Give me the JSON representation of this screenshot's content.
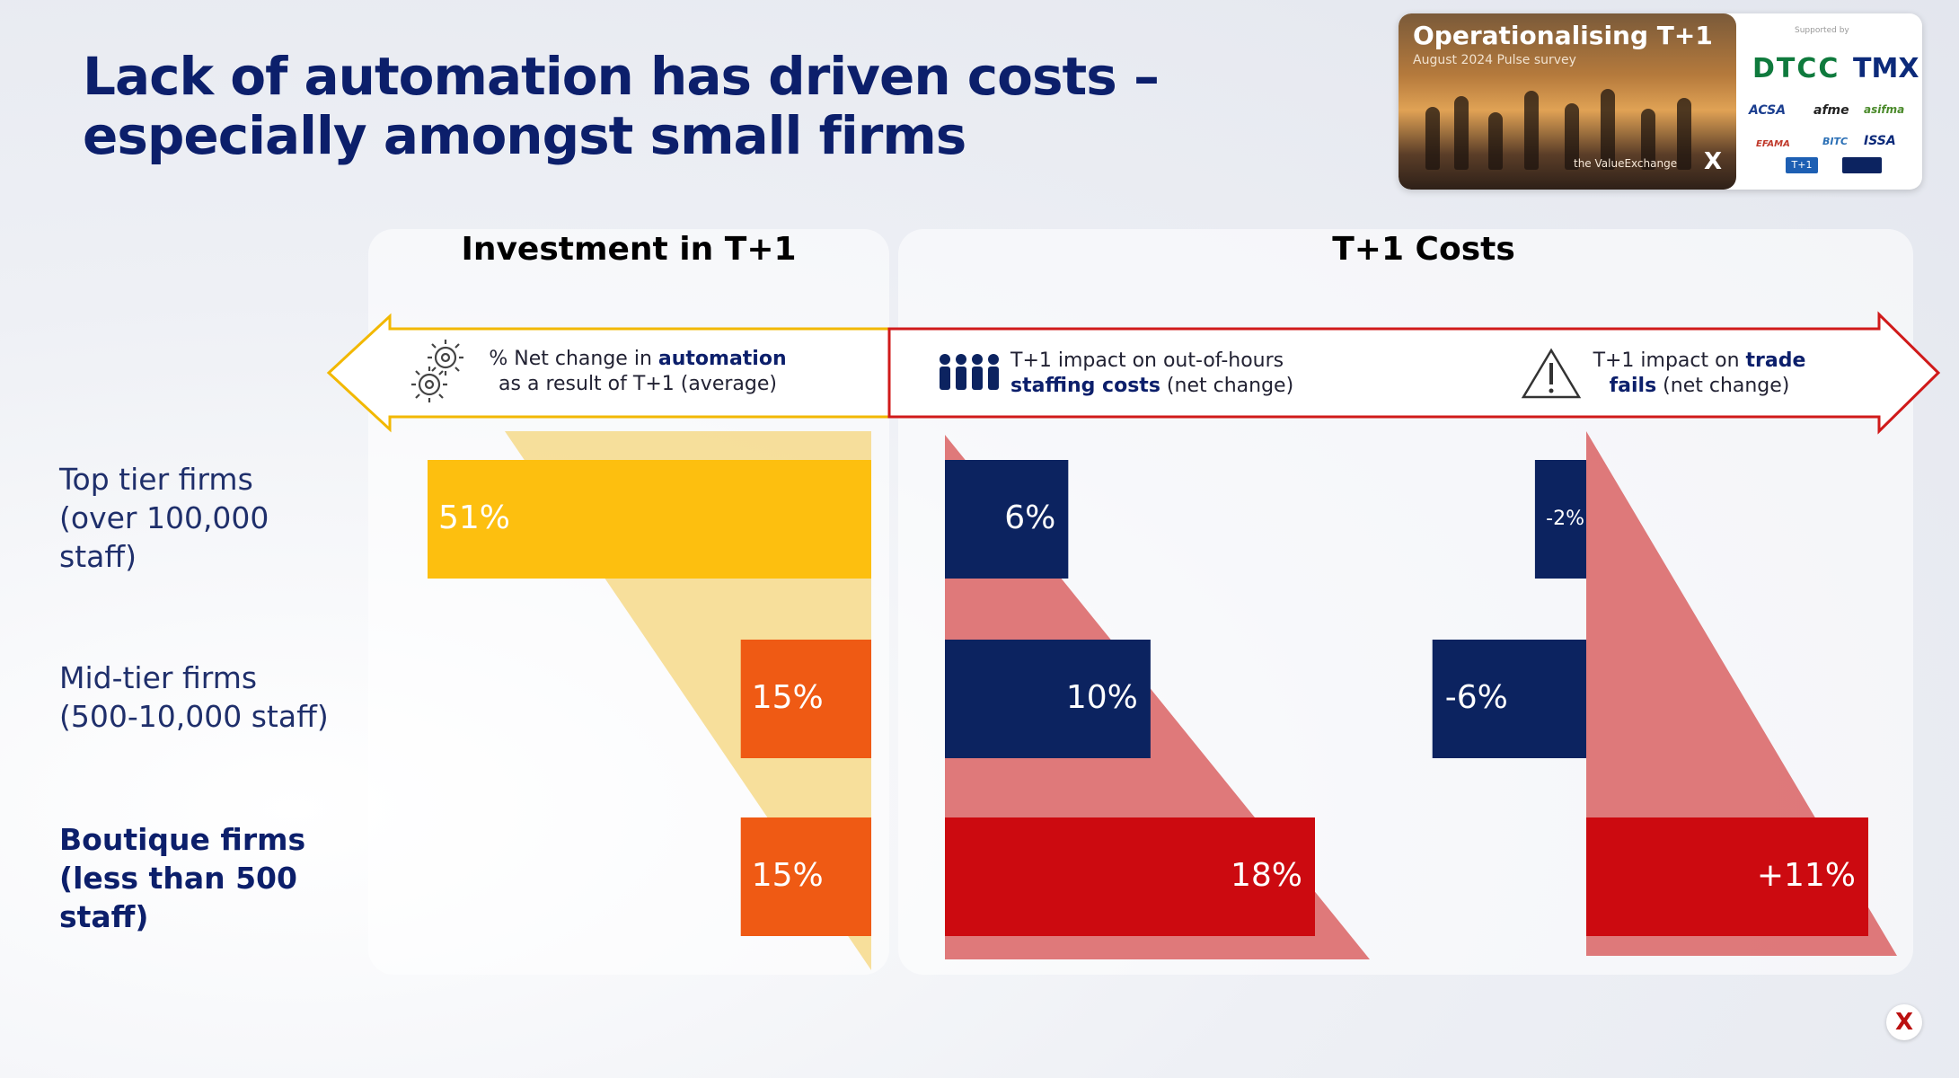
{
  "title": {
    "line1": "Lack of automation has driven costs –",
    "line2": "especially amongst small firms"
  },
  "report": {
    "title": "Operationalising T+1",
    "subtitle": "August 2024 Pulse survey",
    "brand": "the ValueExchange",
    "supported_by": "Supported by",
    "sponsors": [
      "DTCC",
      "TMX",
      "ACSA",
      "afme",
      "asifma",
      "EFAMA",
      "BITC",
      "ISSA",
      "T+1"
    ]
  },
  "panels": {
    "investment_title": "Investment in T+1",
    "costs_title": "T+1 Costs"
  },
  "arrows": {
    "automation": {
      "line1_pre": "% Net change in ",
      "line1_bold": "automation",
      "line2": "as a result of T+1 (average)",
      "icon": "gears-icon"
    },
    "staffing": {
      "line1": "T+1 impact on out-of-hours",
      "line2_bold": "staffing costs",
      "line2_post": " (net change)",
      "icon": "people-icon"
    },
    "fails": {
      "line1_pre": "T+1 impact on ",
      "line1_bold": "trade",
      "line2_bold": "fails",
      "line2_post": " (net change)",
      "icon": "warning-icon"
    }
  },
  "rows": [
    {
      "label_lines": [
        "Top tier firms",
        "(over 100,000",
        "staff)"
      ],
      "bold": false
    },
    {
      "label_lines": [
        "Mid-tier firms",
        "(500-10,000 staff)"
      ],
      "bold": false
    },
    {
      "label_lines": [
        "Boutique firms",
        "(less than 500",
        "staff)"
      ],
      "bold": true
    }
  ],
  "colors": {
    "navy": "#0c2360",
    "title": "#0c1f6b",
    "yellow": "#fdbf0f",
    "orange": "#ef5a14",
    "red": "#cc0a10",
    "pink_triangle": "#dc6a6c",
    "yellow_triangle": "#f6d98a",
    "investment_head": "#f5b400",
    "costs_head": "#c8102e"
  },
  "chart_data": [
    {
      "type": "bar",
      "orientation": "horizontal",
      "title": "Investment in T+1",
      "measure": "% Net change in automation as a result of T+1 (average)",
      "categories": [
        "Top tier firms",
        "Mid-tier firms",
        "Boutique firms"
      ],
      "values": [
        51,
        15,
        15
      ],
      "labels": [
        "51%",
        "15%",
        "15%"
      ]
    },
    {
      "type": "bar",
      "orientation": "horizontal",
      "title": "T+1 Costs",
      "measure": "T+1 impact on out-of-hours staffing costs (net change)",
      "categories": [
        "Top tier firms",
        "Mid-tier firms",
        "Boutique firms"
      ],
      "values": [
        6,
        10,
        18
      ],
      "labels": [
        "6%",
        "10%",
        "18%"
      ]
    },
    {
      "type": "bar",
      "orientation": "horizontal",
      "title": "T+1 Costs",
      "measure": "T+1 impact on trade fails (net change)",
      "categories": [
        "Top tier firms",
        "Mid-tier firms",
        "Boutique firms"
      ],
      "values": [
        -2,
        -6,
        11
      ],
      "labels": [
        "-2%",
        "-6%",
        "+11%"
      ]
    }
  ]
}
